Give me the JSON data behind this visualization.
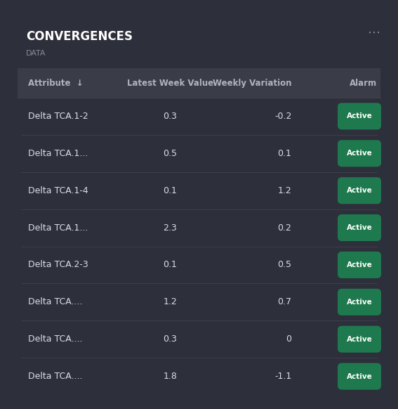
{
  "title": "CONVERGENCES",
  "subtitle": "DATA",
  "bg_color": "#2d2f3a",
  "header_bg": "#3a3c48",
  "divider_color": "#3e404e",
  "text_color": "#dcdde5",
  "header_text_color": "#b0b2be",
  "title_color": "#ffffff",
  "subtitle_color": "#888a96",
  "active_badge_color": "#1e7a4e",
  "active_text_color": "#ffffff",
  "dots_color": "#888a96",
  "columns": [
    "Attribute  ↓",
    "Latest Week Value",
    "Weekly Variation",
    "Alarm"
  ],
  "rows": [
    [
      "Delta TCA.1-2",
      "0.3",
      "-0.2",
      "Active"
    ],
    [
      "Delta TCA.1...",
      "0.5",
      "0.1",
      "Active"
    ],
    [
      "Delta TCA.1-4",
      "0.1",
      "1.2",
      "Active"
    ],
    [
      "Delta TCA.1...",
      "2.3",
      "0.2",
      "Active"
    ],
    [
      "Delta TCA.2-3",
      "0.1",
      "0.5",
      "Active"
    ],
    [
      "Delta TCA....",
      "1.2",
      "0.7",
      "Active"
    ],
    [
      "Delta TCA....",
      "0.3",
      "0",
      "Active"
    ],
    [
      "Delta TCA....",
      "1.8",
      "-1.1",
      "Active"
    ]
  ]
}
